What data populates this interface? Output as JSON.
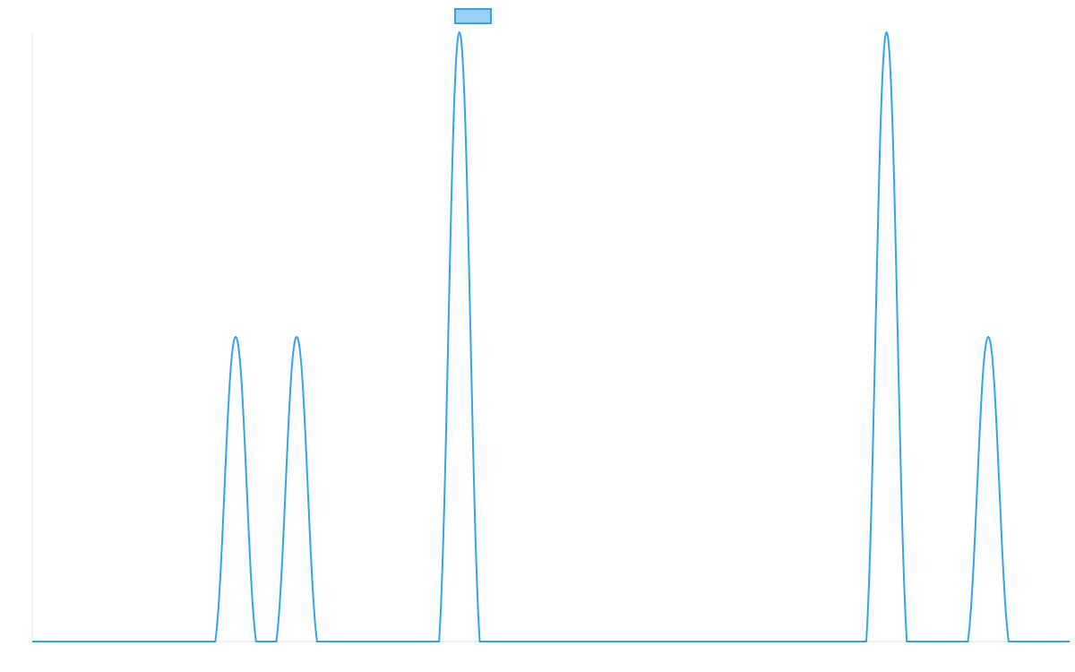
{
  "chart_data": {
    "type": "line",
    "categories": [
      null,
      null,
      null,
      null,
      null,
      null,
      null,
      null,
      null,
      null,
      null,
      null,
      null,
      null,
      null,
      null,
      null,
      null,
      null,
      null,
      null,
      null,
      null,
      null,
      null,
      null,
      null,
      null,
      null,
      null,
      null,
      null,
      null,
      null,
      null,
      null,
      null,
      null,
      null,
      null,
      null,
      null,
      null,
      null,
      null,
      null,
      null,
      null,
      null,
      null,
      null,
      null
    ],
    "series": [
      {
        "color": "#36a2eb",
        "values": [
          0,
          0,
          0,
          0,
          0,
          0,
          0,
          0,
          0,
          0,
          1,
          0,
          0,
          1,
          0,
          0,
          0,
          0,
          0,
          0,
          0,
          2,
          0,
          0,
          0,
          0,
          0,
          0,
          0,
          0,
          0,
          0,
          0,
          0,
          0,
          0,
          0,
          0,
          0,
          0,
          0,
          0,
          2,
          0,
          0,
          0,
          0,
          1,
          0,
          0,
          0,
          0
        ]
      }
    ],
    "ylim": [
      0,
      2
    ],
    "legend": "top"
  }
}
